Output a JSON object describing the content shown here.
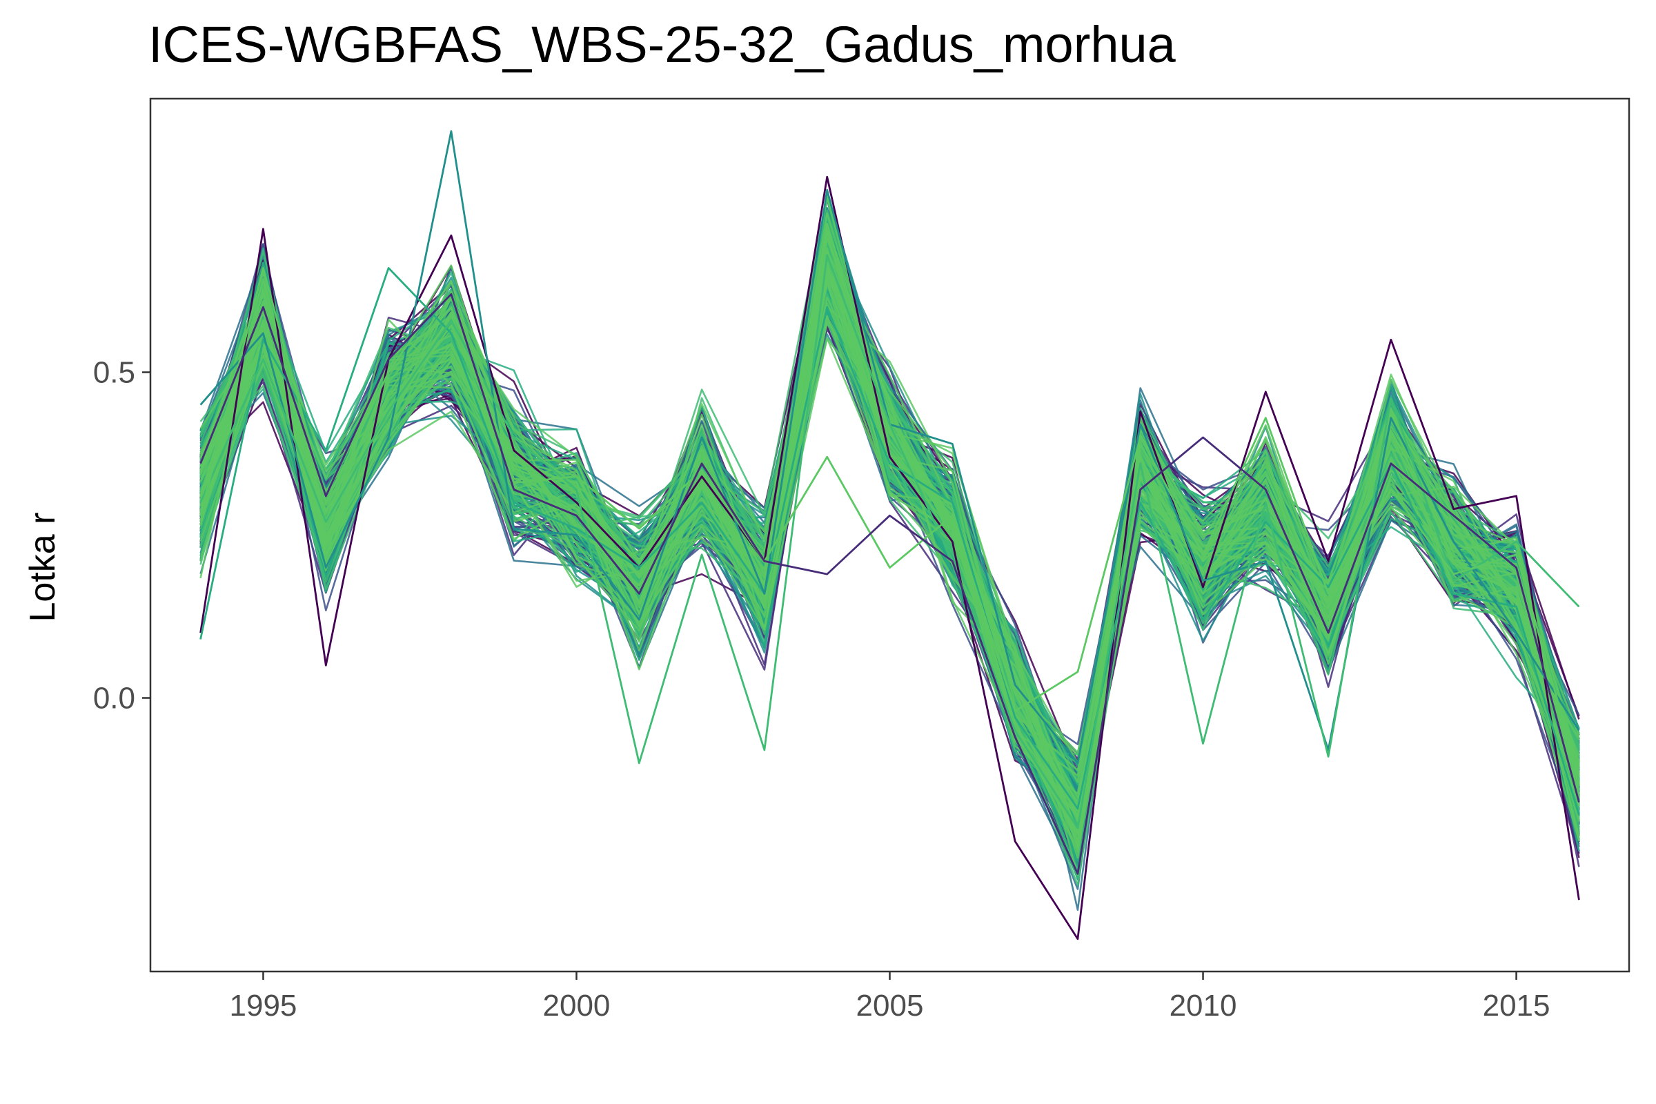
{
  "chart_data": {
    "type": "line",
    "title": "ICES-WGBFAS_WBS-25-32_Gadus_morhua",
    "xlabel": "",
    "ylabel": "Lotka r",
    "xlim": [
      1993.2,
      2016.8
    ],
    "ylim": [
      -0.42,
      0.92
    ],
    "xticks": [
      1995,
      2000,
      2005,
      2010,
      2015
    ],
    "xtick_labels": [
      "1995",
      "2000",
      "2005",
      "2010",
      "2015"
    ],
    "yticks": [
      0.0,
      0.5
    ],
    "ytick_labels": [
      "0.0",
      "0.5"
    ],
    "grid": false,
    "legend": "none",
    "palette": [
      "#440154",
      "#472c7a",
      "#3b518b",
      "#2c718e",
      "#21908d",
      "#27ad81",
      "#3fbc73",
      "#5cc863"
    ],
    "x": [
      1994,
      1995,
      1996,
      1997,
      1998,
      1999,
      2000,
      2001,
      2002,
      2003,
      2004,
      2005,
      2006,
      2007,
      2008,
      2009,
      2010,
      2011,
      2012,
      2013,
      2014,
      2015,
      2016
    ],
    "central_series": [
      0.32,
      0.58,
      0.26,
      0.47,
      0.55,
      0.35,
      0.29,
      0.17,
      0.34,
      0.18,
      0.66,
      0.4,
      0.26,
      0.0,
      -0.18,
      0.35,
      0.2,
      0.3,
      0.13,
      0.38,
      0.24,
      0.17,
      -0.13
    ],
    "series_count": 300,
    "spread": 0.09,
    "highlighted_series": [
      {
        "values": [
          0.1,
          0.72,
          0.05,
          0.52,
          0.71,
          0.38,
          0.3,
          0.2,
          0.34,
          0.21,
          0.8,
          0.37,
          0.24,
          -0.22,
          -0.37,
          0.44,
          0.17,
          0.47,
          0.21,
          0.55,
          0.29,
          0.31,
          -0.31
        ],
        "color": "#440154"
      },
      {
        "values": [
          0.09,
          0.55,
          0.38,
          0.66,
          0.56,
          0.3,
          0.26,
          0.2,
          0.3,
          0.16,
          0.6,
          0.36,
          0.3,
          -0.03,
          -0.17,
          0.3,
          0.12,
          0.27,
          0.17,
          0.36,
          0.16,
          0.14,
          -0.18
        ],
        "color": "#27ad81"
      },
      {
        "values": [
          0.45,
          0.56,
          0.2,
          0.4,
          0.87,
          0.26,
          0.25,
          0.12,
          0.4,
          0.16,
          0.78,
          0.42,
          0.39,
          0.02,
          -0.1,
          0.42,
          0.18,
          0.21,
          -0.08,
          0.43,
          0.24,
          0.1,
          -0.05
        ],
        "color": "#21908d"
      },
      {
        "values": [
          0.3,
          0.52,
          0.27,
          0.44,
          0.58,
          0.4,
          0.32,
          -0.1,
          0.22,
          -0.08,
          0.68,
          0.42,
          0.21,
          -0.05,
          -0.2,
          0.36,
          -0.07,
          0.3,
          -0.09,
          0.46,
          0.18,
          0.24,
          0.14
        ],
        "color": "#3fbc73"
      },
      {
        "values": [
          0.28,
          0.66,
          0.3,
          0.5,
          0.64,
          0.33,
          0.34,
          0.26,
          0.35,
          0.21,
          0.37,
          0.2,
          0.28,
          -0.02,
          0.04,
          0.4,
          0.22,
          0.43,
          0.16,
          0.32,
          0.19,
          0.22,
          -0.12
        ],
        "color": "#5cc863"
      },
      {
        "values": [
          0.36,
          0.6,
          0.31,
          0.52,
          0.62,
          0.32,
          0.28,
          0.16,
          0.36,
          0.21,
          0.19,
          0.28,
          0.21,
          -0.06,
          -0.27,
          0.32,
          0.4,
          0.32,
          0.1,
          0.36,
          0.28,
          0.2,
          -0.16
        ],
        "color": "#472c7a"
      }
    ]
  }
}
